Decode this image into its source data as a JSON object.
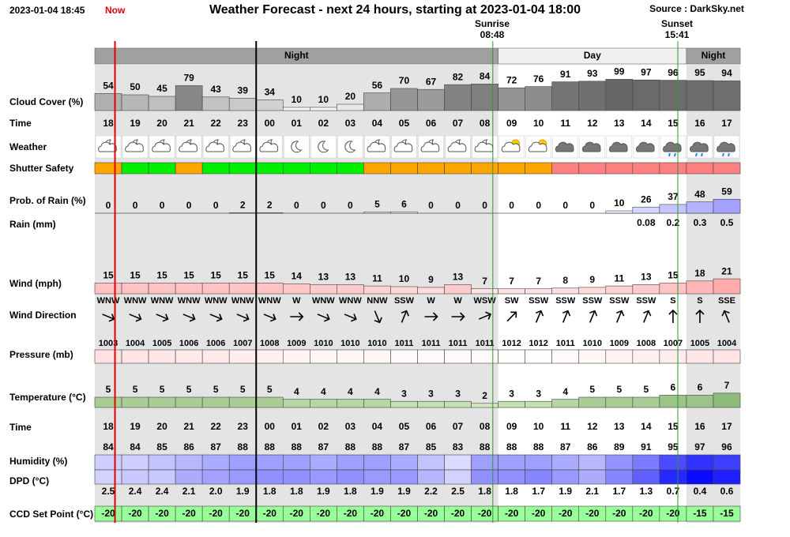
{
  "header": {
    "timestamp": "2023-01-04 18:45",
    "now": "Now",
    "title": "Weather Forecast - next 24 hours, starting at 2023-01-04 18:00",
    "source": "Source : DarkSky.net",
    "sunrise": "Sunrise",
    "sunrise_time": "08:48",
    "sunset": "Sunset",
    "sunset_time": "15:41"
  },
  "periods": [
    "Night",
    "Day",
    "Night"
  ],
  "labels": {
    "cloud_cover": "Cloud Cover (%)",
    "time": "Time",
    "weather": "Weather",
    "shutter": "Shutter Safety",
    "rain_prob": "Prob. of Rain (%)",
    "rain": "Rain (mm)",
    "wind": "Wind (mph)",
    "wind_dir": "Wind Direction",
    "pressure": "Pressure (mb)",
    "temperature": "Temperature (°C)",
    "time2": "Time",
    "humidity": "Humidity (%)",
    "dpd": "DPD (°C)",
    "ccd": "CCD Set Point (°C)"
  },
  "hours": [
    "18",
    "19",
    "20",
    "21",
    "22",
    "23",
    "00",
    "01",
    "02",
    "03",
    "04",
    "05",
    "06",
    "07",
    "08",
    "09",
    "10",
    "11",
    "12",
    "13",
    "14",
    "15",
    "16",
    "17"
  ],
  "cloud_cover": [
    54,
    50,
    45,
    79,
    43,
    39,
    34,
    10,
    10,
    20,
    56,
    70,
    67,
    82,
    84,
    72,
    76,
    91,
    93,
    99,
    97,
    96,
    95,
    94
  ],
  "shutter_colors": [
    "#ffa500",
    "#00ee00",
    "#00ee00",
    "#ffa500",
    "#00ee00",
    "#00ee00",
    "#00ee00",
    "#00ee00",
    "#00ee00",
    "#00ee00",
    "#ffa500",
    "#ffa500",
    "#ffa500",
    "#ffa500",
    "#ffa500",
    "#ffa500",
    "#ffa500",
    "#ff8080",
    "#ff8080",
    "#ff8080",
    "#ff8080",
    "#ff8080",
    "#ff8080",
    "#ff8080"
  ],
  "rain_prob": [
    0,
    0,
    0,
    0,
    0,
    2,
    2,
    0,
    0,
    0,
    5,
    6,
    0,
    0,
    0,
    0,
    0,
    0,
    0,
    10,
    26,
    37,
    48,
    59
  ],
  "rain_mm": [
    null,
    null,
    null,
    null,
    null,
    null,
    null,
    null,
    null,
    null,
    null,
    null,
    null,
    null,
    null,
    null,
    null,
    null,
    null,
    null,
    0.08,
    0.2,
    0.3,
    0.5
  ],
  "wind": [
    15,
    15,
    15,
    15,
    15,
    15,
    15,
    14,
    13,
    13,
    11,
    10,
    9,
    13,
    7,
    7,
    7,
    8,
    9,
    11,
    13,
    15,
    18,
    21
  ],
  "wind_dir": [
    "WNW",
    "WNW",
    "WNW",
    "WNW",
    "WNW",
    "WNW",
    "WNW",
    "W",
    "WNW",
    "WNW",
    "NNW",
    "SSW",
    "W",
    "W",
    "WSW",
    "SW",
    "SSW",
    "SSW",
    "SSW",
    "SSW",
    "SSW",
    "S",
    "S",
    "SSE"
  ],
  "pressure": [
    1003,
    1004,
    1005,
    1006,
    1006,
    1007,
    1008,
    1009,
    1010,
    1010,
    1010,
    1011,
    1011,
    1011,
    1011,
    1012,
    1012,
    1011,
    1010,
    1009,
    1008,
    1007,
    1005,
    1004
  ],
  "temperature": [
    5,
    5,
    5,
    5,
    5,
    5,
    5,
    4,
    4,
    4,
    4,
    3,
    3,
    3,
    2,
    3,
    3,
    4,
    5,
    5,
    5,
    6,
    6,
    7
  ],
  "humidity": [
    84,
    84,
    85,
    86,
    87,
    88,
    88,
    88,
    87,
    88,
    88,
    87,
    85,
    83,
    88,
    88,
    88,
    87,
    86,
    89,
    91,
    95,
    97,
    96
  ],
  "dpd": [
    2.5,
    2.4,
    2.4,
    2.1,
    2.0,
    1.9,
    1.8,
    1.8,
    1.9,
    1.8,
    1.9,
    1.9,
    2.2,
    2.5,
    1.8,
    1.8,
    1.7,
    1.9,
    2.1,
    1.7,
    1.3,
    0.7,
    0.4,
    0.6
  ],
  "dpd_labels": [
    "2.5",
    "2.4",
    "2.4",
    "2.1",
    "2.0",
    "1.9",
    "1.8",
    "1.8",
    "1.9",
    "1.8",
    "1.9",
    "1.9",
    "2.2",
    "2.5",
    "1.8",
    "1.8",
    "1.7",
    "1.9",
    "2.1",
    "1.7",
    "1.3",
    "0.7",
    "0.4",
    "0.6"
  ],
  "ccd": [
    -20,
    -20,
    -20,
    -20,
    -20,
    -20,
    -20,
    -20,
    -20,
    -20,
    -20,
    -20,
    -20,
    -20,
    -20,
    -20,
    -20,
    -20,
    -20,
    -20,
    -20,
    -20,
    -15,
    -15
  ]
}
